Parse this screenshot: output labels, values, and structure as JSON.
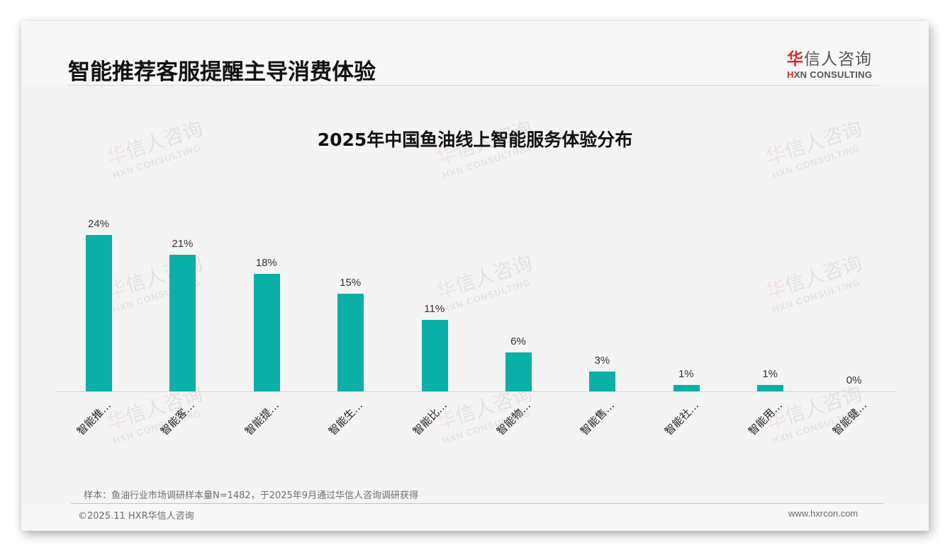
{
  "header": {
    "title": "智能推荐客服提醒主导消费体验",
    "logo": {
      "cn_red": "华",
      "cn_rest": "信人咨询",
      "en_red": "H",
      "en_rest": "XN CONSULTING"
    }
  },
  "watermark": {
    "cn_red": "华",
    "cn_rest": "信人咨询",
    "en": "HXN CONSULTING"
  },
  "colors": {
    "bar": "#0aafa5",
    "brand_red": "#d22a2a"
  },
  "chart_data": {
    "type": "bar",
    "title": "2025年中国鱼油线上智能服务体验分布",
    "xlabel": "",
    "ylabel": "",
    "ylim": [
      0,
      25
    ],
    "grid": false,
    "legend": null,
    "categories": [
      "智能推…",
      "智能客…",
      "智能提…",
      "智能生…",
      "智能比…",
      "智能物…",
      "智能售…",
      "智能社…",
      "智能用…",
      "智能健…"
    ],
    "values": [
      24,
      21,
      18,
      15,
      11,
      6,
      3,
      1,
      1,
      0
    ],
    "value_labels": [
      "24%",
      "21%",
      "18%",
      "15%",
      "11%",
      "6%",
      "3%",
      "1%",
      "1%",
      "0%"
    ],
    "unit": "%"
  },
  "footer": {
    "note": "样本：鱼油行业市场调研样本量N=1482，于2025年9月通过华信人咨询调研获得",
    "copyright": "©2025.11 HXR华信人咨询",
    "website": "www.hxrcon.com"
  }
}
